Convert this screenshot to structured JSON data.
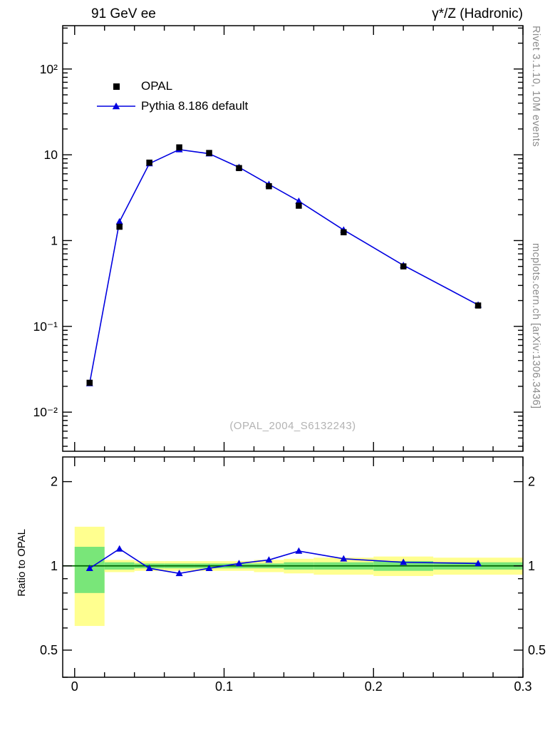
{
  "header": {
    "left": "91 GeV ee",
    "right": "γ*/Z (Hadronic)"
  },
  "right_margin": {
    "top": "Rivet 3.1.10,  10M events",
    "bottom": "mcplots.cern.ch [arXiv:1306.3436]"
  },
  "watermark": "(OPAL_2004_S6132243)",
  "legend": {
    "items": [
      {
        "label": "OPAL",
        "marker": "black-square",
        "color": "#000000"
      },
      {
        "label": "Pythia 8.186 default",
        "marker": "blue-line-triangle",
        "color": "#0000e0"
      }
    ]
  },
  "chart_data": {
    "type": "line",
    "yscale": "log",
    "x": [
      0.01,
      0.03,
      0.05,
      0.07,
      0.09,
      0.11,
      0.13,
      0.15,
      0.18,
      0.22,
      0.27
    ],
    "series": [
      {
        "name": "OPAL",
        "marker": "square",
        "color": "#000000",
        "line": false,
        "values": [
          0.022,
          1.45,
          8.1,
          12.2,
          10.5,
          7.0,
          4.3,
          2.55,
          1.25,
          0.5,
          0.175
        ]
      },
      {
        "name": "Pythia 8.186 default",
        "marker": "triangle",
        "color": "#0000e0",
        "line": true,
        "values": [
          0.0216,
          1.66,
          7.9,
          11.5,
          10.3,
          7.14,
          4.52,
          2.88,
          1.33,
          0.515,
          0.178
        ]
      }
    ],
    "xlim": [
      -0.008,
      0.3
    ],
    "ylim": [
      0.0035,
      320
    ],
    "xticks": {
      "major": [
        0,
        0.1,
        0.2,
        0.3
      ],
      "labels": [
        "0",
        "0.1",
        "0.2",
        "0.3"
      ],
      "minor_step": 0.02
    },
    "yticks": {
      "major": [
        0.01,
        0.1,
        1,
        10,
        100
      ],
      "labels": [
        "10⁻²",
        "10⁻¹",
        "1",
        "10",
        "10²"
      ]
    },
    "ratio": {
      "ylabel": "Ratio to OPAL",
      "ylim": [
        0.4,
        2.45
      ],
      "yticks": {
        "major": [
          0.5,
          1,
          2
        ],
        "labels": [
          "0.5",
          "1",
          "2"
        ],
        "minor": [
          0.4,
          0.6,
          0.7,
          0.8,
          0.9
        ]
      },
      "values": [
        0.98,
        1.15,
        0.98,
        0.94,
        0.98,
        1.02,
        1.05,
        1.13,
        1.06,
        1.03,
        1.02
      ],
      "bin_edges": [
        0,
        0.02,
        0.04,
        0.06,
        0.08,
        0.1,
        0.12,
        0.14,
        0.16,
        0.2,
        0.24,
        0.3
      ],
      "bands": [
        {
          "ylo": 0.61,
          "yhi": 1.38,
          "glo": 0.8,
          "ghi": 1.17
        },
        {
          "ylo": 0.95,
          "yhi": 1.05,
          "glo": 0.97,
          "ghi": 1.03
        },
        {
          "ylo": 0.96,
          "yhi": 1.04,
          "glo": 0.98,
          "ghi": 1.02
        },
        {
          "ylo": 0.96,
          "yhi": 1.04,
          "glo": 0.98,
          "ghi": 1.02
        },
        {
          "ylo": 0.96,
          "yhi": 1.04,
          "glo": 0.98,
          "ghi": 1.02
        },
        {
          "ylo": 0.96,
          "yhi": 1.04,
          "glo": 0.98,
          "ghi": 1.02
        },
        {
          "ylo": 0.95,
          "yhi": 1.05,
          "glo": 0.98,
          "ghi": 1.02
        },
        {
          "ylo": 0.94,
          "yhi": 1.06,
          "glo": 0.97,
          "ghi": 1.03
        },
        {
          "ylo": 0.93,
          "yhi": 1.07,
          "glo": 0.97,
          "ghi": 1.03
        },
        {
          "ylo": 0.92,
          "yhi": 1.08,
          "glo": 0.96,
          "ghi": 1.04
        },
        {
          "ylo": 0.93,
          "yhi": 1.07,
          "glo": 0.97,
          "ghi": 1.03
        }
      ],
      "colors": {
        "band_outer": "#ffff8f",
        "band_inner": "#79e679",
        "ref_line": "#006600"
      }
    }
  }
}
